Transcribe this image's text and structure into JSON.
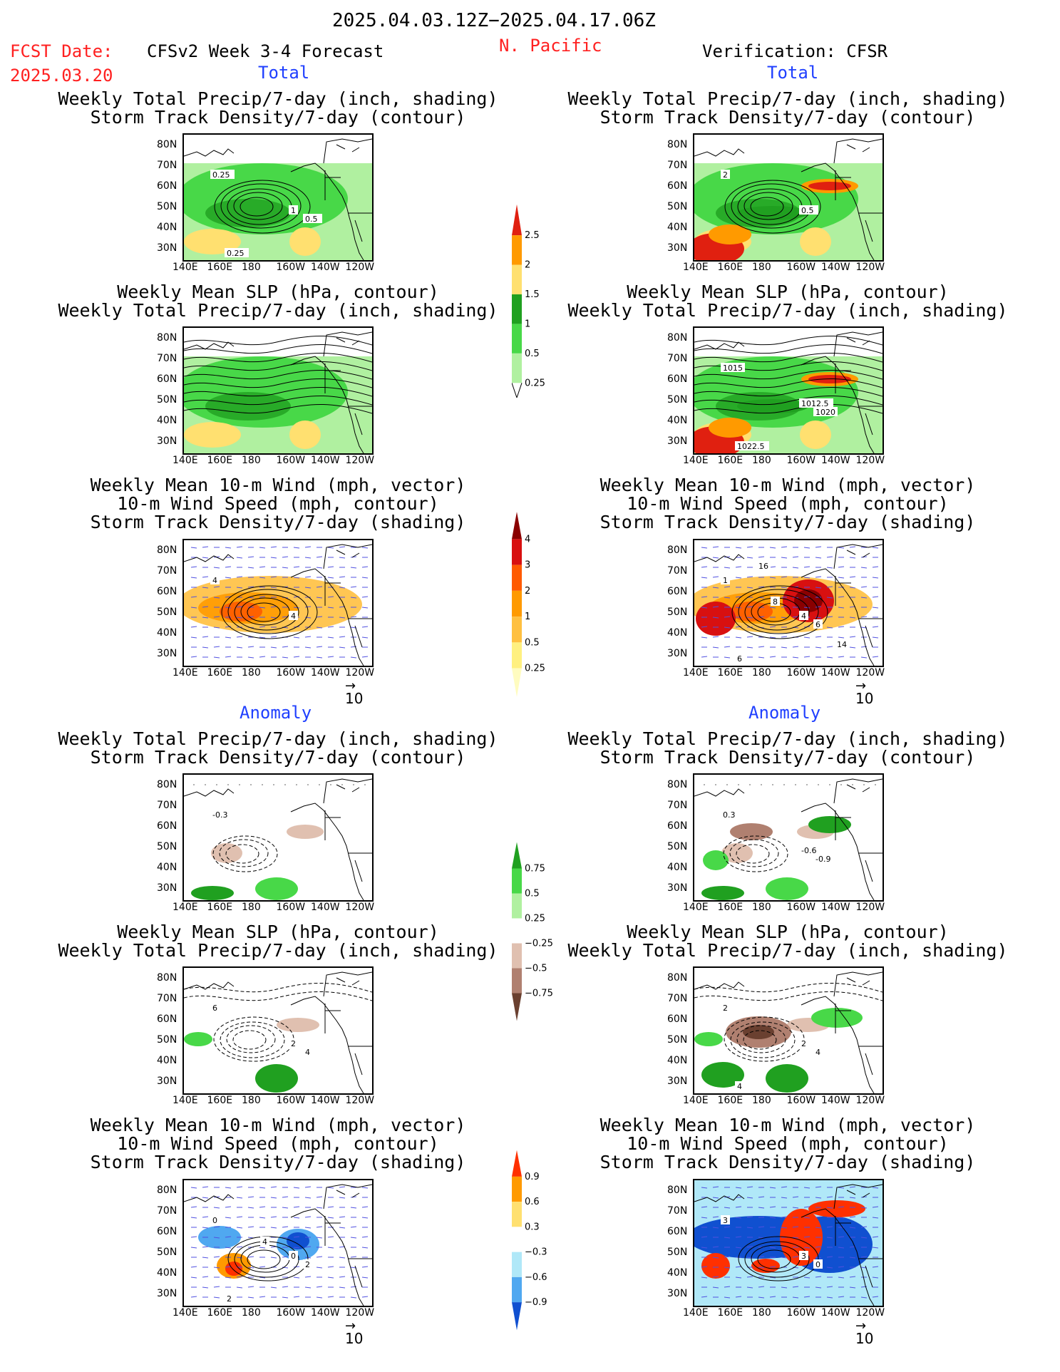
{
  "header": {
    "date_range": "2025.04.03.12Z−2025.04.17.06Z",
    "fcst_date_label": "FCST Date:",
    "fcst_date": "2025.03.20",
    "forecast_title": "CFSv2 Week 3-4 Forecast",
    "region": "N. Pacific",
    "verification": "Verification: CFSR"
  },
  "sections": {
    "total": "Total",
    "anomaly": "Anomaly"
  },
  "titles": {
    "precip_storm": [
      "Weekly Total Precip/7-day (inch, shading)",
      "Storm Track Density/7-day (contour)"
    ],
    "slp_precip": [
      "Weekly Mean SLP (hPa, contour)",
      "Weekly Total Precip/7-day (inch, shading)"
    ],
    "wind": [
      "Weekly Mean 10-m Wind (mph, vector)",
      "10-m Wind Speed (mph, contour)",
      "Storm Track Density/7-day (shading)"
    ]
  },
  "axes": {
    "lat_ticks": [
      "80N",
      "70N",
      "60N",
      "50N",
      "40N",
      "30N"
    ],
    "lon_ticks": [
      "140E",
      "160E",
      "180",
      "160W",
      "140W",
      "120W"
    ]
  },
  "vector_ref": "10",
  "contour_labels": {
    "fc_total_precip": [
      "0.25",
      "1",
      "0.5",
      "0.25"
    ],
    "ob_total_precip": [
      "2",
      "0.5"
    ],
    "ob_total_slp": [
      "1015",
      "1012.5",
      "1020",
      "1022.5"
    ],
    "fc_total_wind": [
      "4",
      "4"
    ],
    "ob_total_wind": [
      "1",
      "4",
      "6",
      "6",
      "8",
      "14",
      "16"
    ],
    "fc_anom_precip": [
      "-0.3"
    ],
    "ob_anom_precip": [
      "0.3",
      "-0.6",
      "-0.9"
    ],
    "fc_anom_slp": [
      "6",
      "2",
      "4"
    ],
    "ob_anom_slp": [
      "2",
      "2",
      "4",
      "4"
    ],
    "fc_anom_wind": [
      "0",
      "0",
      "2",
      "2",
      "4"
    ],
    "ob_anom_wind": [
      "3",
      "3",
      "0"
    ]
  },
  "colorbars": {
    "precip_total": {
      "labels": [
        "2.5",
        "2",
        "1.5",
        "1",
        "0.5",
        "0.25"
      ],
      "colors": [
        "#e02010",
        "#ff9a00",
        "#ffe070",
        "#20a020",
        "#48d848",
        "#b0f0a0"
      ]
    },
    "storm_total": {
      "labels": [
        "4",
        "3",
        "2",
        "1",
        "0.5",
        "0.25"
      ],
      "colors": [
        "#8a0000",
        "#d81010",
        "#ff5a00",
        "#ff9a00",
        "#ffc040",
        "#fff080",
        "#fffcc0"
      ]
    },
    "precip_anom": {
      "labels": [
        "0.75",
        "0.5",
        "0.25",
        "−0.25",
        "−0.5",
        "−0.75"
      ],
      "colors": [
        "#20a020",
        "#48d848",
        "#b0f0a0",
        "#ffffff",
        "#e0c0b0",
        "#b08070",
        "#6a4030"
      ]
    },
    "storm_anom": {
      "labels": [
        "0.9",
        "0.6",
        "0.3",
        "−0.3",
        "−0.6",
        "−0.9"
      ],
      "colors": [
        "#ff3000",
        "#ff9a00",
        "#ffe070",
        "#ffffff",
        "#b0e8f8",
        "#50a8f0",
        "#1050d0"
      ]
    }
  }
}
